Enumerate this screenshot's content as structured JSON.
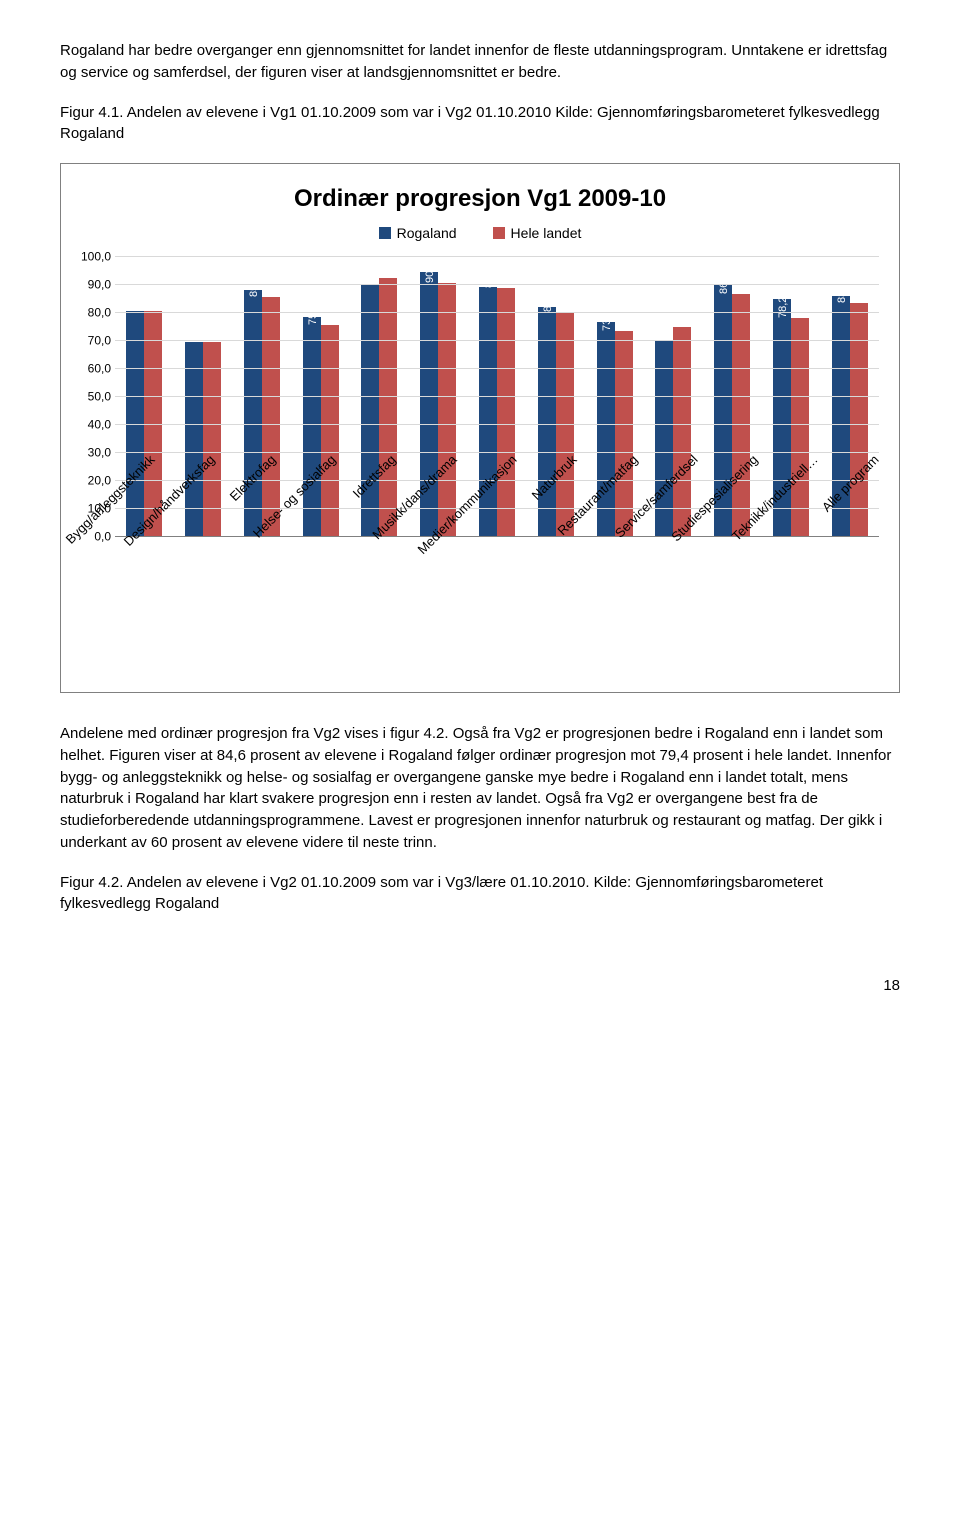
{
  "paragraphs": {
    "intro": "Rogaland har bedre overganger enn gjennomsnittet for landet innenfor de fleste utdanningsprogram. Unntakene er idrettsfag og service og samferdsel, der figuren viser at landsgjennomsnittet er bedre.",
    "caption1": "Figur 4.1. Andelen av elevene i Vg1 01.10.2009 som var i Vg2 01.10.2010 Kilde: Gjennomføringsbarometeret fylkesvedlegg Rogaland",
    "body": "Andelene med ordinær progresjon fra Vg2 vises i figur 4.2. Også fra Vg2 er progresjonen bedre i Rogaland enn i landet som helhet. Figuren viser at 84,6 prosent av elevene i Rogaland følger ordinær progresjon mot 79,4 prosent i hele landet. Innenfor bygg- og anleggsteknikk og helse- og sosialfag er overgangene ganske mye bedre i Rogaland enn i landet totalt, mens naturbruk i Rogaland har klart svakere progresjon enn i resten av landet. Også fra Vg2 er overgangene best fra de studieforberedende utdanningsprogrammene. Lavest er progresjonen innenfor naturbruk og restaurant og matfag. Der gikk i underkant av 60 prosent av elevene videre til neste trinn.",
    "caption2": "Figur 4.2. Andelen av elevene i Vg2 01.10.2009 som var i Vg3/lære 01.10.2010. Kilde: Gjennomføringsbarometeret fylkesvedlegg Rogaland"
  },
  "page_number": "18",
  "chart": {
    "type": "bar",
    "title": "Ordinær progresjon Vg1 2009-10",
    "legend": [
      {
        "label": "Rogaland",
        "color": "#1f497d"
      },
      {
        "label": "Hele landet",
        "color": "#c0504d"
      }
    ],
    "ylim": [
      0,
      100
    ],
    "yticks": [
      "0,0",
      "10,0",
      "20,0",
      "30,0",
      "40,0",
      "50,0",
      "60,0",
      "70,0",
      "80,0",
      "90,0",
      "100,0"
    ],
    "grid_color": "#d9d9d9",
    "axis_color": "#808080",
    "background_color": "#ffffff",
    "bar_colors": [
      "#1f497d",
      "#c0504d"
    ],
    "label_fontsize": 11,
    "title_fontsize": 24,
    "categories": [
      {
        "name": "Bygg/anleggsteknikk",
        "rogaland": 80.6,
        "landet": 80.6,
        "rlabel": "80,6",
        "llabel": "80,6"
      },
      {
        "name": "Design/håndverksfag",
        "rogaland": 69.8,
        "landet": 69.8,
        "rlabel": "69,8",
        "llabel": "69,8"
      },
      {
        "name": "Elektrofag",
        "rogaland": 88.1,
        "landet": 85.6,
        "rlabel": "88,1",
        "llabel": "85,6"
      },
      {
        "name": "Helse- og sosialfag",
        "rogaland": 78.5,
        "landet": 75.7,
        "rlabel": "78,5",
        "llabel": "75,7"
      },
      {
        "name": "Idrettsfag",
        "rogaland": 90.4,
        "landet": 92.6,
        "rlabel": "90,4",
        "llabel": "92,6"
      },
      {
        "name": "Musikk/dans/drama",
        "rogaland": 94.6,
        "landet": 90.6,
        "rlabel": "94,6",
        "llabel": "90,6"
      },
      {
        "name": "Medier/kommunikasjon",
        "rogaland": 89.4,
        "landet": 88.8,
        "rlabel": "89,4",
        "llabel": "88,8"
      },
      {
        "name": "Naturbruk",
        "rogaland": 82.3,
        "landet": 80.5,
        "rlabel": "82,3",
        "llabel": "80,5"
      },
      {
        "name": "Restaurant/matfag",
        "rogaland": 76.8,
        "landet": 73.6,
        "rlabel": "76,8",
        "llabel": "73,6"
      },
      {
        "name": "Service/samferdsel",
        "rogaland": 70.5,
        "landet": 74.9,
        "rlabel": "70,5",
        "llabel": "74,9"
      },
      {
        "name": "Studiespesialisering",
        "rogaland": 90.2,
        "landet": 86.9,
        "rlabel": "90,2",
        "llabel": "86,9"
      },
      {
        "name": "Teknikk/industriell…",
        "rogaland": 85.0,
        "landet": 78.2,
        "rlabel": "85,0",
        "llabel": "78,2"
      },
      {
        "name": "Alle program",
        "rogaland": 86.2,
        "landet": 83.5,
        "rlabel": "86,2",
        "llabel": "83,5"
      }
    ]
  }
}
